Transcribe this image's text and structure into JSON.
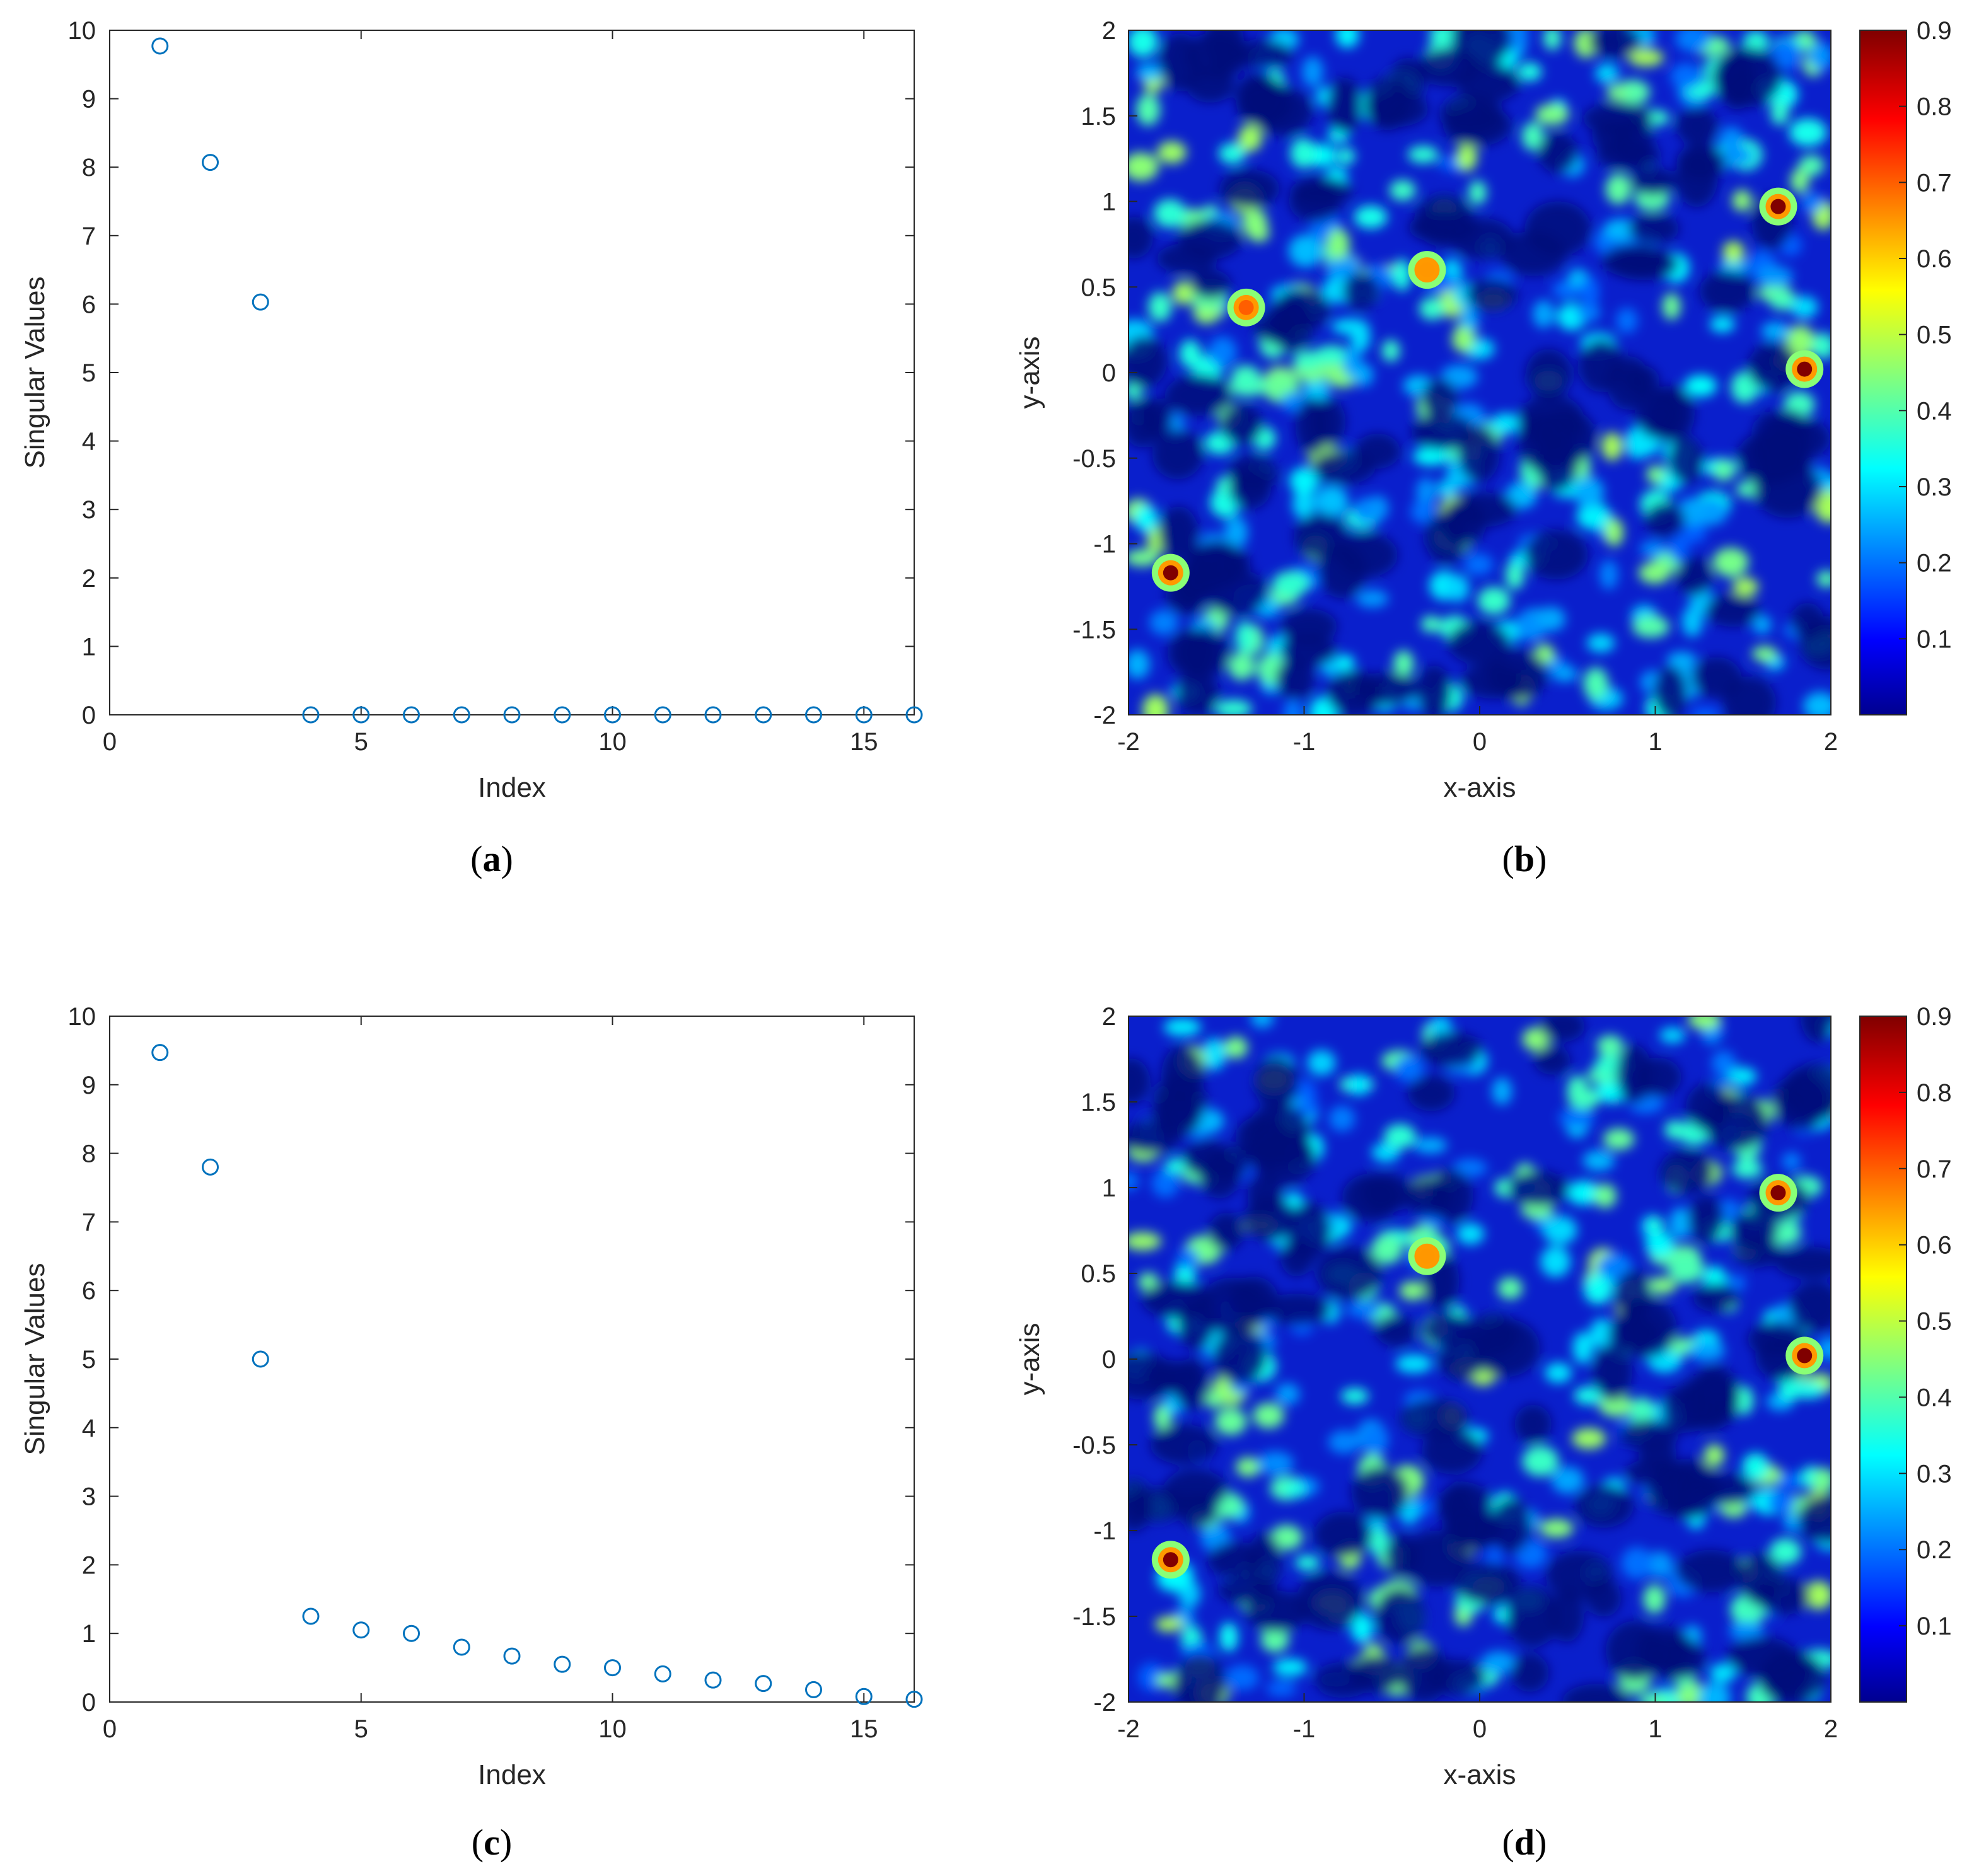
{
  "chart_data": [
    {
      "panel": "(a)",
      "type": "scatter",
      "xlabel": "Index",
      "ylabel": "Singular Values",
      "xlim": [
        0,
        16
      ],
      "ylim": [
        0,
        10
      ],
      "xticks": [
        0,
        5,
        10,
        15
      ],
      "yticks": [
        0,
        1,
        2,
        3,
        4,
        5,
        6,
        7,
        8,
        9,
        10
      ],
      "marker": "circle",
      "color": "#0072BD",
      "x": [
        1,
        2,
        3,
        4,
        5,
        6,
        7,
        8,
        9,
        10,
        11,
        12,
        13,
        14,
        15,
        16
      ],
      "y": [
        9.77,
        8.07,
        6.03,
        0,
        0,
        0,
        0,
        0,
        0,
        0,
        0,
        0,
        0,
        0,
        0,
        0
      ]
    },
    {
      "panel": "(b)",
      "type": "heatmap",
      "xlabel": "x-axis",
      "ylabel": "y-axis",
      "xlim": [
        -2,
        2
      ],
      "ylim": [
        -2,
        2
      ],
      "xticks": [
        -2,
        -1,
        0,
        1,
        2
      ],
      "yticks": [
        -2,
        -1.5,
        -1,
        -0.5,
        0,
        0.5,
        1,
        1.5,
        2
      ],
      "colorbar": {
        "colormap": "jet",
        "ticks": [
          0.1,
          0.2,
          0.3,
          0.4,
          0.5,
          0.6,
          0.7,
          0.8,
          0.9
        ],
        "range": [
          0,
          0.9
        ]
      },
      "peaks": [
        {
          "x": 1.7,
          "y": 0.97,
          "value": 0.9
        },
        {
          "x": 1.85,
          "y": 0.02,
          "value": 0.9
        },
        {
          "x": -1.76,
          "y": -1.17,
          "value": 0.9
        },
        {
          "x": -1.33,
          "y": 0.38,
          "value": 0.7
        },
        {
          "x": -0.3,
          "y": 0.6,
          "value": 0.65
        }
      ]
    },
    {
      "panel": "(c)",
      "type": "scatter",
      "xlabel": "Index",
      "ylabel": "Singular Values",
      "xlim": [
        0,
        16
      ],
      "ylim": [
        0,
        10
      ],
      "xticks": [
        0,
        5,
        10,
        15
      ],
      "yticks": [
        0,
        1,
        2,
        3,
        4,
        5,
        6,
        7,
        8,
        9,
        10
      ],
      "marker": "circle",
      "color": "#0072BD",
      "x": [
        1,
        2,
        3,
        4,
        5,
        6,
        7,
        8,
        9,
        10,
        11,
        12,
        13,
        14,
        15,
        16
      ],
      "y": [
        9.47,
        7.8,
        5.0,
        1.25,
        1.05,
        1.0,
        0.8,
        0.67,
        0.55,
        0.5,
        0.41,
        0.32,
        0.27,
        0.18,
        0.08,
        0.04
      ]
    },
    {
      "panel": "(d)",
      "type": "heatmap",
      "xlabel": "x-axis",
      "ylabel": "y-axis",
      "xlim": [
        -2,
        2
      ],
      "ylim": [
        -2,
        2
      ],
      "xticks": [
        -2,
        -1,
        0,
        1,
        2
      ],
      "yticks": [
        -2,
        -1.5,
        -1,
        -0.5,
        0,
        0.5,
        1,
        1.5,
        2
      ],
      "colorbar": {
        "colormap": "jet",
        "ticks": [
          0.1,
          0.2,
          0.3,
          0.4,
          0.5,
          0.6,
          0.7,
          0.8,
          0.9
        ],
        "range": [
          0,
          0.9
        ]
      },
      "peaks": [
        {
          "x": 1.7,
          "y": 0.97,
          "value": 0.9
        },
        {
          "x": 1.85,
          "y": 0.02,
          "value": 0.9
        },
        {
          "x": -1.76,
          "y": -1.17,
          "value": 0.9
        },
        {
          "x": -0.3,
          "y": 0.6,
          "value": 0.65
        }
      ]
    }
  ],
  "panel_labels": {
    "a": "a",
    "b": "b",
    "c": "c",
    "d": "d"
  }
}
